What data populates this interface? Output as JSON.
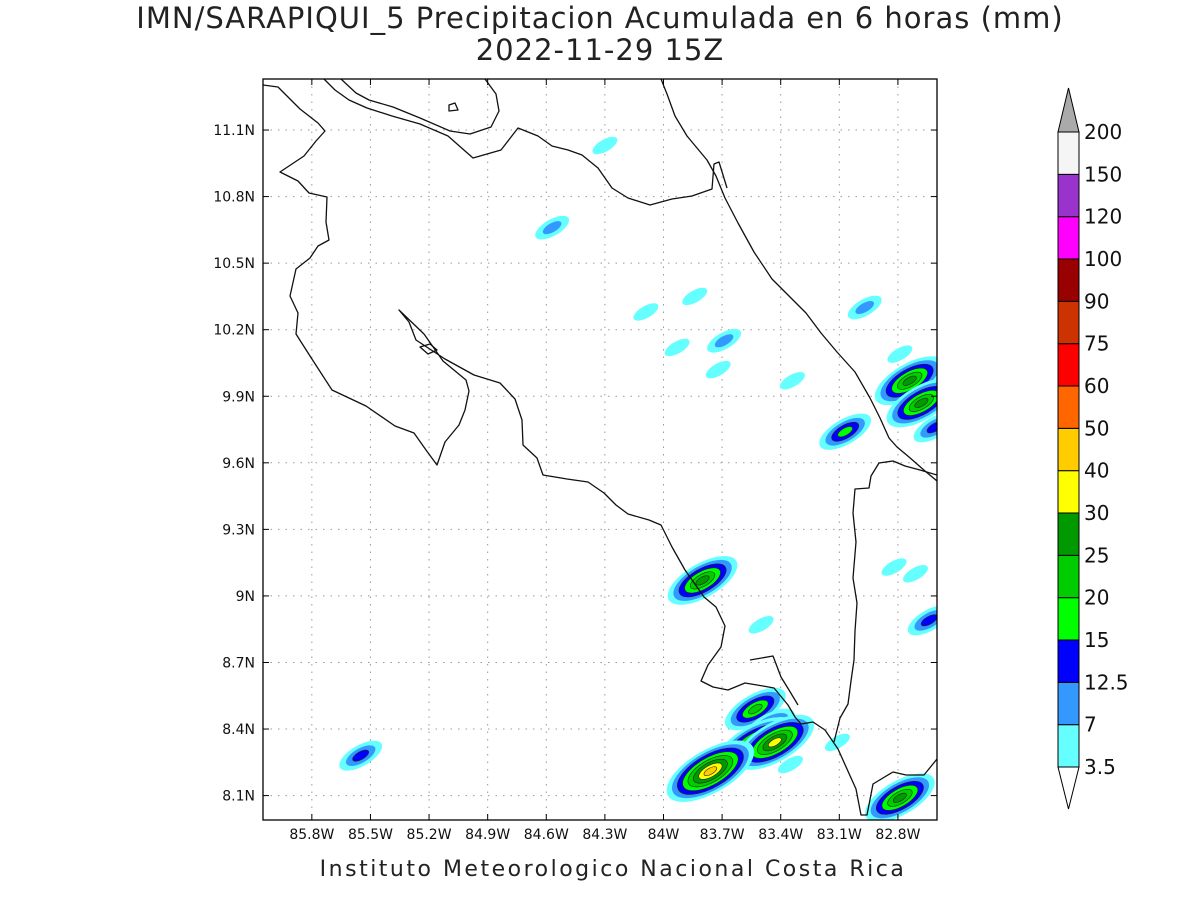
{
  "title": {
    "line1": "IMN/SARAPIQUI_5 Precipitacion Acumulada en 6 horas (mm)",
    "line2": "2022-11-29 15Z"
  },
  "credit": "Instituto Meteorologico Nacional Costa Rica",
  "map": {
    "lon_range": [
      -86.05,
      -82.6
    ],
    "lat_range": [
      7.99,
      11.33
    ],
    "lon_ticks": [
      {
        "value": -85.8,
        "label": "85.8W"
      },
      {
        "value": -85.5,
        "label": "85.5W"
      },
      {
        "value": -85.2,
        "label": "85.2W"
      },
      {
        "value": -84.9,
        "label": "84.9W"
      },
      {
        "value": -84.6,
        "label": "84.6W"
      },
      {
        "value": -84.3,
        "label": "84.3W"
      },
      {
        "value": -84.0,
        "label": "84W"
      },
      {
        "value": -83.7,
        "label": "83.7W"
      },
      {
        "value": -83.4,
        "label": "83.4W"
      },
      {
        "value": -83.1,
        "label": "83.1W"
      },
      {
        "value": -82.8,
        "label": "82.8W"
      }
    ],
    "lat_ticks": [
      {
        "value": 11.1,
        "label": "11.1N"
      },
      {
        "value": 10.8,
        "label": "10.8N"
      },
      {
        "value": 10.5,
        "label": "10.5N"
      },
      {
        "value": 10.2,
        "label": "10.2N"
      },
      {
        "value": 9.9,
        "label": "9.9N"
      },
      {
        "value": 9.6,
        "label": "9.6N"
      },
      {
        "value": 9.3,
        "label": "9.3N"
      },
      {
        "value": 9.0,
        "label": "9N"
      },
      {
        "value": 8.7,
        "label": "8.7N"
      },
      {
        "value": 8.4,
        "label": "8.4N"
      },
      {
        "value": 8.1,
        "label": "8.1N"
      }
    ],
    "grid": true
  },
  "colorbar": {
    "levels": [
      "3.5",
      "7",
      "12.5",
      "15",
      "20",
      "25",
      "30",
      "40",
      "50",
      "60",
      "75",
      "90",
      "100",
      "120",
      "150",
      "200"
    ],
    "colors": [
      "#66ffff",
      "#3399ff",
      "#0000ff",
      "#00ff00",
      "#00cc00",
      "#009900",
      "#ffff00",
      "#ffcc00",
      "#ff6600",
      "#ff0000",
      "#cc3300",
      "#990000",
      "#ff00ff",
      "#9933cc",
      "#f5f5f5",
      "#aaaaaa"
    ],
    "under_color": "#ffffff",
    "over_color": "#aaaaaa"
  },
  "rain_cells": [
    {
      "lon": -84.57,
      "lat": 10.66,
      "level": 7
    },
    {
      "lon": -84.3,
      "lat": 11.03,
      "level": 3.5
    },
    {
      "lon": -84.09,
      "lat": 10.28,
      "level": 3.5
    },
    {
      "lon": -83.84,
      "lat": 10.35,
      "level": 3.5
    },
    {
      "lon": -83.93,
      "lat": 10.12,
      "level": 3.5
    },
    {
      "lon": -83.69,
      "lat": 10.15,
      "level": 7
    },
    {
      "lon": -83.72,
      "lat": 10.02,
      "level": 3.5
    },
    {
      "lon": -83.34,
      "lat": 9.97,
      "level": 3.5
    },
    {
      "lon": -82.97,
      "lat": 10.3,
      "level": 7
    },
    {
      "lon": -82.79,
      "lat": 10.09,
      "level": 3.5
    },
    {
      "lon": -83.07,
      "lat": 9.74,
      "level": 15
    },
    {
      "lon": -82.74,
      "lat": 9.97,
      "level": 25
    },
    {
      "lon": -82.68,
      "lat": 9.87,
      "level": 25
    },
    {
      "lon": -82.61,
      "lat": 9.76,
      "level": 12.5
    },
    {
      "lon": -82.82,
      "lat": 9.13,
      "level": 3.5
    },
    {
      "lon": -82.71,
      "lat": 9.1,
      "level": 3.5
    },
    {
      "lon": -82.64,
      "lat": 8.89,
      "level": 12.5
    },
    {
      "lon": -83.8,
      "lat": 9.07,
      "level": 25
    },
    {
      "lon": -83.5,
      "lat": 8.87,
      "level": 3.5
    },
    {
      "lon": -83.53,
      "lat": 8.49,
      "level": 20
    },
    {
      "lon": -83.46,
      "lat": 8.41,
      "level": 15
    },
    {
      "lon": -83.53,
      "lat": 8.33,
      "level": 30
    },
    {
      "lon": -83.43,
      "lat": 8.34,
      "level": 30
    },
    {
      "lon": -83.76,
      "lat": 8.21,
      "level": 40
    },
    {
      "lon": -83.35,
      "lat": 8.24,
      "level": 3.5
    },
    {
      "lon": -82.79,
      "lat": 8.09,
      "level": 25
    },
    {
      "lon": -85.55,
      "lat": 8.28,
      "level": 12.5
    },
    {
      "lon": -83.11,
      "lat": 8.34,
      "level": 3.5
    }
  ]
}
